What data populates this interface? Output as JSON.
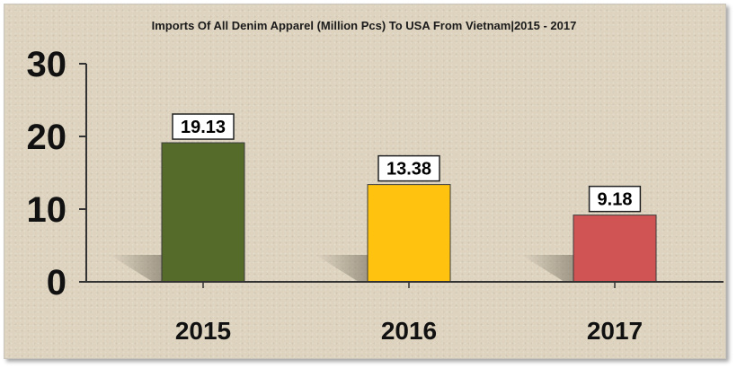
{
  "chart_data": {
    "type": "bar",
    "title": "Imports Of All Denim Apparel (Million Pcs) To USA From Vietnam|2015 - 2017",
    "categories": [
      "2015",
      "2016",
      "2017"
    ],
    "values": [
      19.13,
      13.38,
      9.18
    ],
    "data_labels": [
      "19.13",
      "13.38",
      "9.18"
    ],
    "bar_colors": [
      "#556b2a",
      "#ffc20e",
      "#cf5453"
    ],
    "ylim": [
      0,
      30
    ],
    "yticks": [
      "0",
      "10",
      "20",
      "30"
    ],
    "xlabel": "",
    "ylabel": "",
    "grid": false,
    "legend": "none"
  }
}
